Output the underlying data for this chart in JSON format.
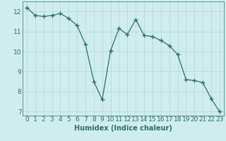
{
  "x": [
    0,
    1,
    2,
    3,
    4,
    5,
    6,
    7,
    8,
    9,
    10,
    11,
    12,
    13,
    14,
    15,
    16,
    17,
    18,
    19,
    20,
    21,
    22,
    23
  ],
  "y": [
    12.2,
    11.8,
    11.75,
    11.8,
    11.9,
    11.65,
    11.3,
    10.35,
    8.5,
    7.6,
    10.05,
    11.15,
    10.85,
    11.6,
    10.8,
    10.75,
    10.55,
    10.3,
    9.85,
    8.6,
    8.55,
    8.45,
    7.65,
    7.0
  ],
  "line_color": "#2d6e6e",
  "marker": "+",
  "marker_size": 4,
  "bg_color": "#d0eded",
  "grid_color": "#b8d8d8",
  "xlabel": "Humidex (Indice chaleur)",
  "ylim": [
    6.8,
    12.5
  ],
  "xlim": [
    -0.5,
    23.5
  ],
  "yticks": [
    7,
    8,
    9,
    10,
    11,
    12
  ],
  "xticks": [
    0,
    1,
    2,
    3,
    4,
    5,
    6,
    7,
    8,
    9,
    10,
    11,
    12,
    13,
    14,
    15,
    16,
    17,
    18,
    19,
    20,
    21,
    22,
    23
  ],
  "xlabel_fontsize": 7,
  "tick_fontsize": 6.5
}
